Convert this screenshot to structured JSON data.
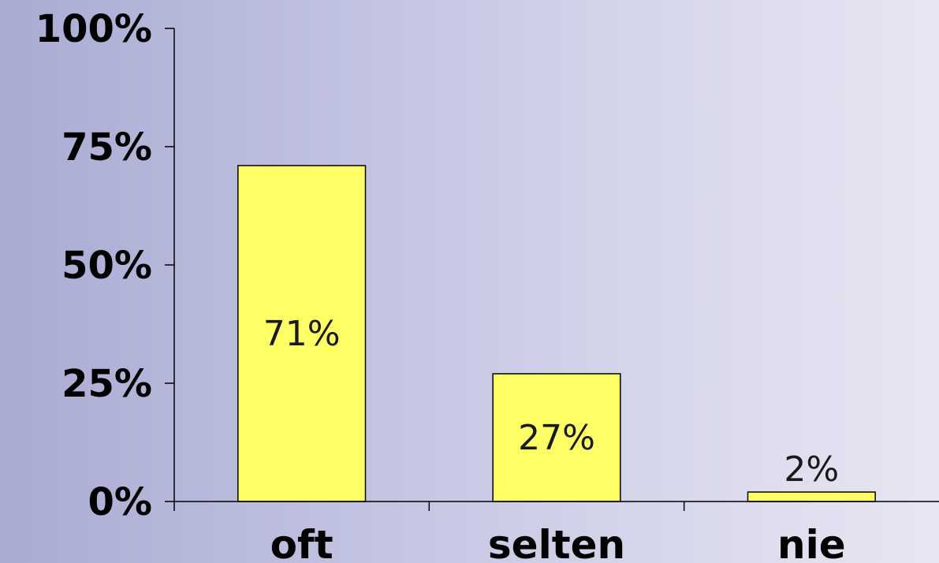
{
  "chart_data": {
    "type": "bar",
    "categories": [
      "oft",
      "selten",
      "nie"
    ],
    "values": [
      71,
      27,
      2
    ],
    "data_labels": [
      "71%",
      "27%",
      "2%"
    ],
    "ylim": [
      0,
      100
    ],
    "yticks": [
      0,
      25,
      50,
      75,
      100
    ],
    "ytick_labels": [
      "0%",
      "25%",
      "50%",
      "75%",
      "100%"
    ],
    "grid": false,
    "bar_color": "#ffff66",
    "bar_edge_color": "#000000"
  }
}
